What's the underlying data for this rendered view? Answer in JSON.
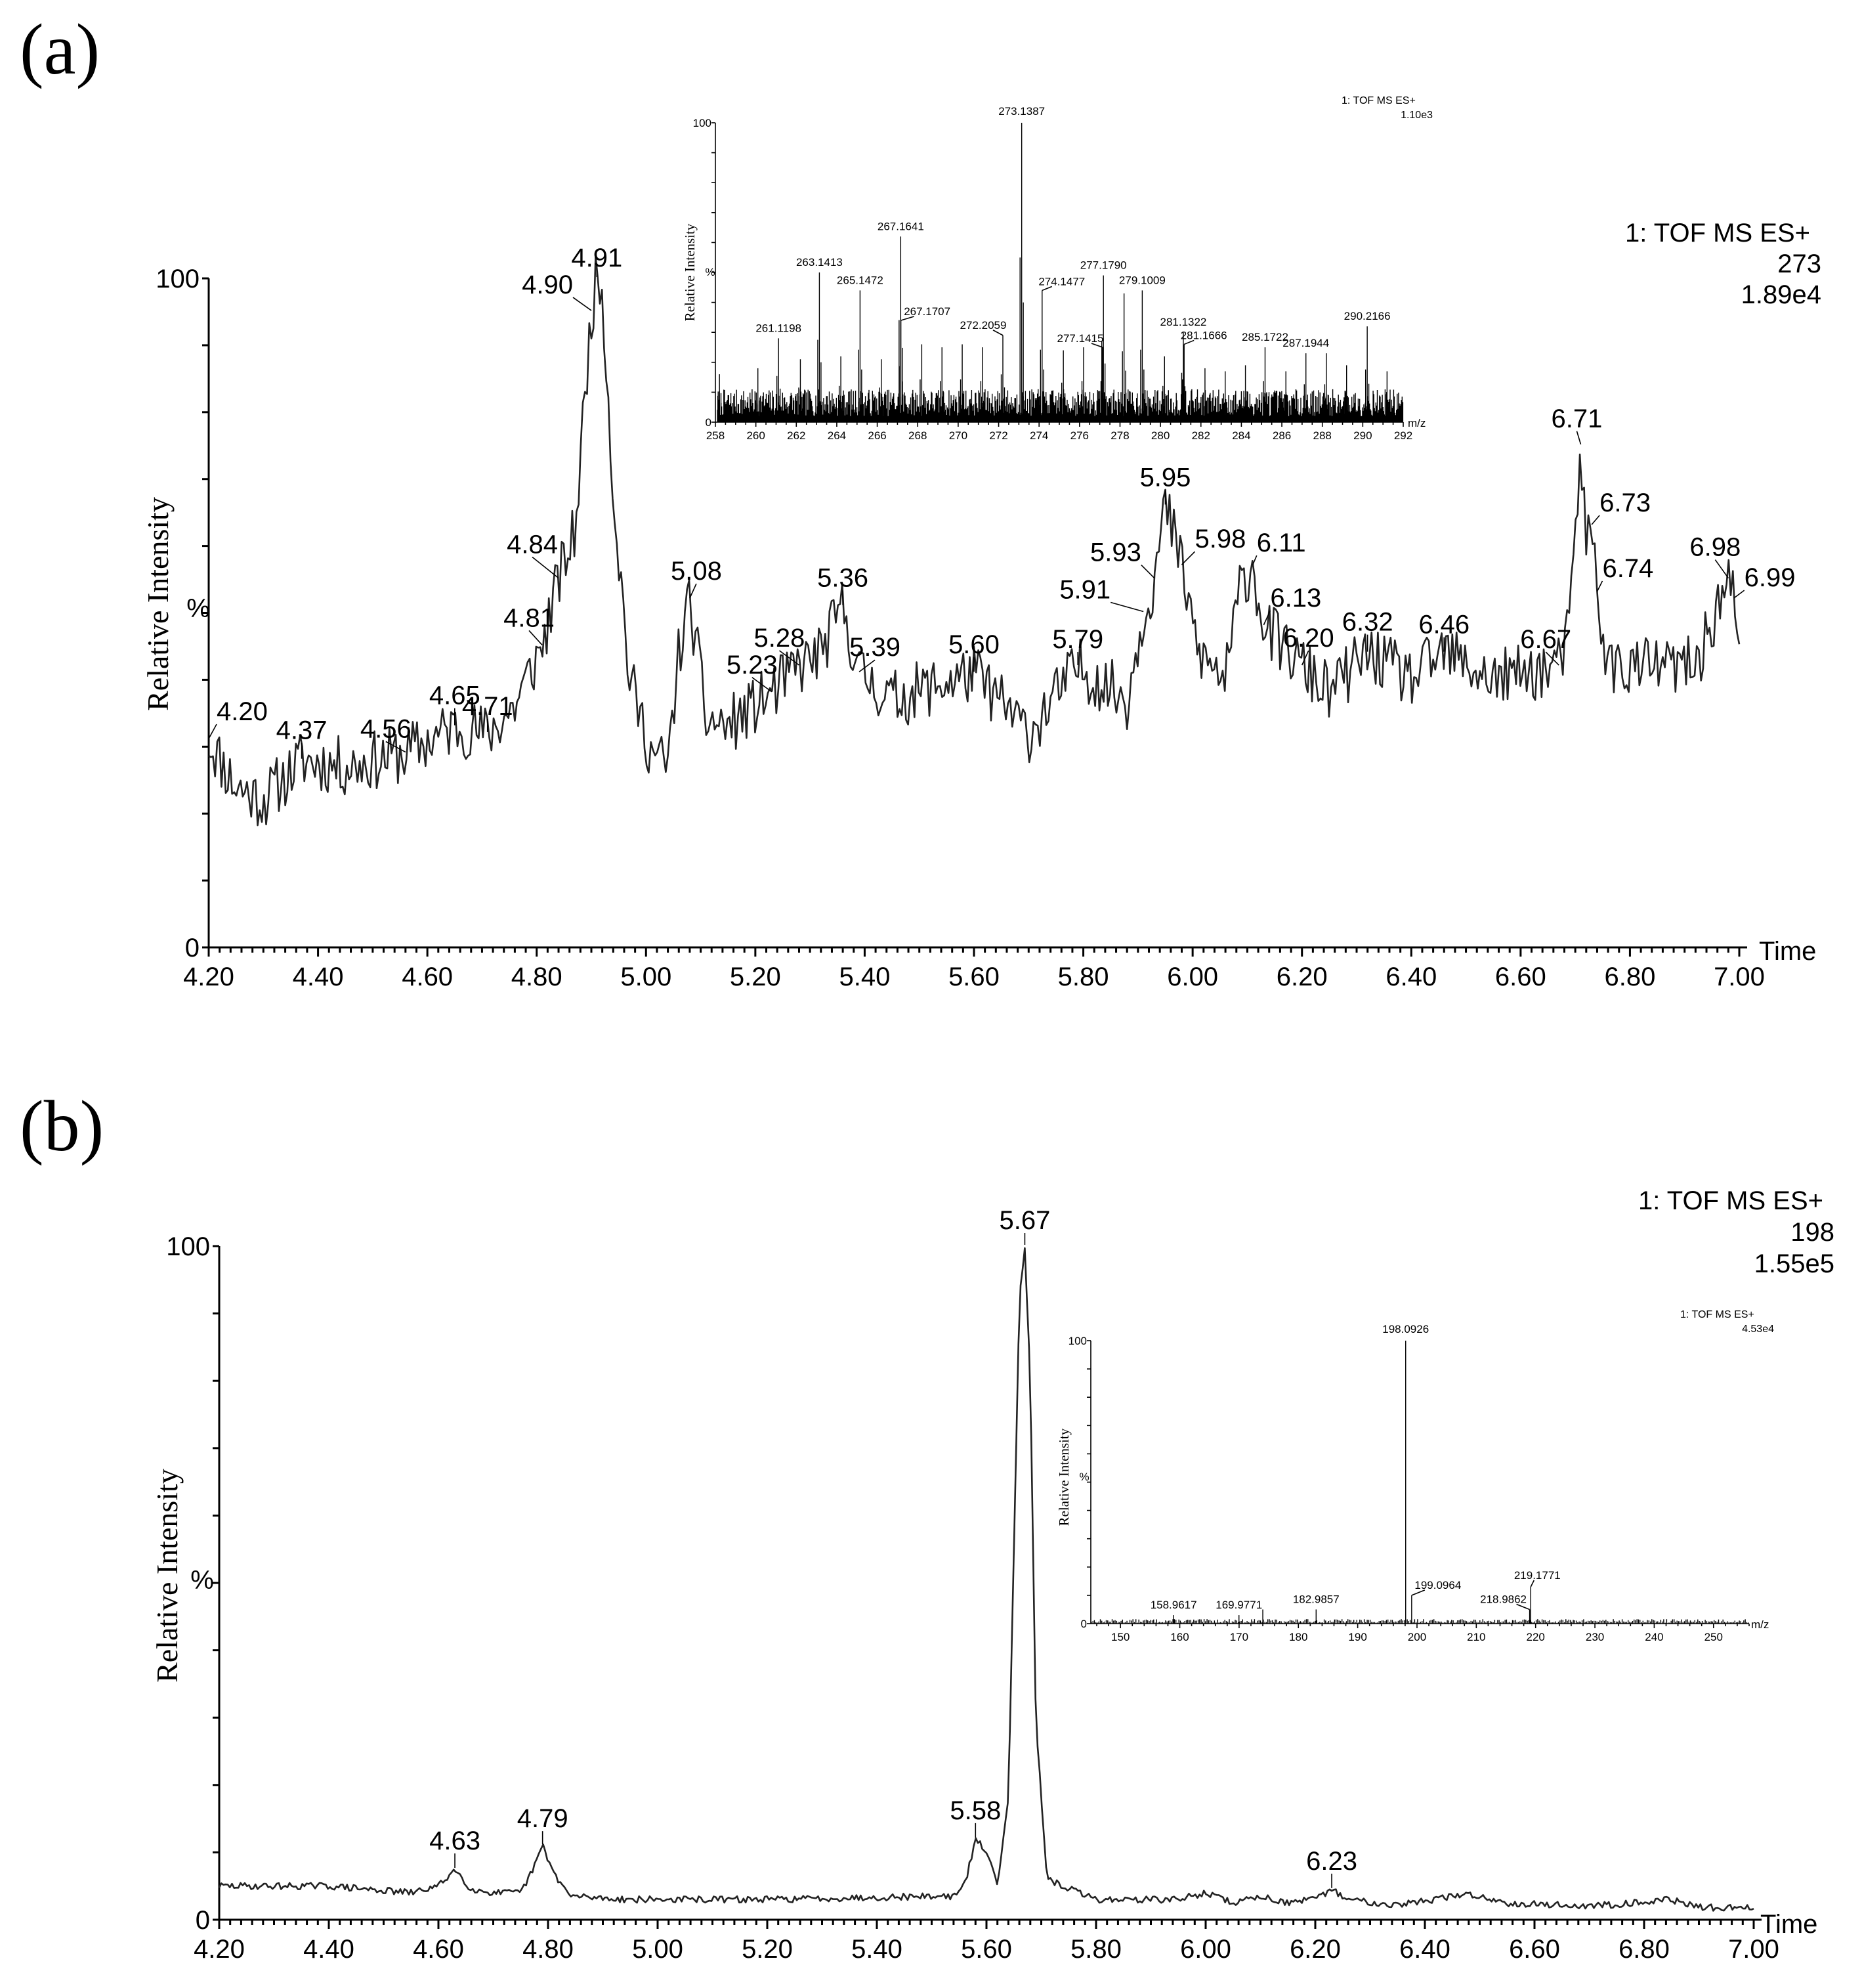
{
  "panel_labels": [
    "(a)",
    "(b)"
  ],
  "chart_data": [
    {
      "id": "chromatogram-a",
      "type": "line",
      "panel": "(a)",
      "ylabel": "Relative Intensity",
      "yunit": "%",
      "xlabel": "Time",
      "xlim": [
        4.2,
        7.0
      ],
      "ylim": [
        0,
        100
      ],
      "xticks": [
        "4.20",
        "4.40",
        "4.60",
        "4.80",
        "5.00",
        "5.20",
        "5.40",
        "5.60",
        "5.80",
        "6.00",
        "6.20",
        "6.40",
        "6.60",
        "6.80",
        "7.00"
      ],
      "yticks": [
        "0",
        "100"
      ],
      "header": [
        "1: TOF MS ES+",
        "273",
        "1.89e4"
      ],
      "anchors": [
        [
          4.2,
          31
        ],
        [
          4.25,
          24
        ],
        [
          4.3,
          22
        ],
        [
          4.37,
          28
        ],
        [
          4.45,
          27
        ],
        [
          4.56,
          29
        ],
        [
          4.65,
          33
        ],
        [
          4.71,
          32
        ],
        [
          4.76,
          36
        ],
        [
          4.81,
          45
        ],
        [
          4.84,
          55
        ],
        [
          4.87,
          62
        ],
        [
          4.9,
          95
        ],
        [
          4.91,
          100
        ],
        [
          4.92,
          99
        ],
        [
          4.94,
          68
        ],
        [
          4.97,
          40
        ],
        [
          5.01,
          29
        ],
        [
          5.04,
          27
        ],
        [
          5.06,
          44
        ],
        [
          5.08,
          52
        ],
        [
          5.11,
          34
        ],
        [
          5.15,
          33
        ],
        [
          5.23,
          38
        ],
        [
          5.28,
          42
        ],
        [
          5.32,
          44
        ],
        [
          5.36,
          51
        ],
        [
          5.39,
          41
        ],
        [
          5.45,
          37
        ],
        [
          5.6,
          41
        ],
        [
          5.7,
          32
        ],
        [
          5.79,
          42
        ],
        [
          5.88,
          37
        ],
        [
          5.91,
          50
        ],
        [
          5.93,
          55
        ],
        [
          5.95,
          66
        ],
        [
          5.98,
          57
        ],
        [
          6.01,
          44
        ],
        [
          6.06,
          40
        ],
        [
          6.09,
          55
        ],
        [
          6.11,
          57
        ],
        [
          6.13,
          48
        ],
        [
          6.2,
          42
        ],
        [
          6.25,
          38
        ],
        [
          6.32,
          44
        ],
        [
          6.4,
          40
        ],
        [
          6.46,
          44
        ],
        [
          6.55,
          40
        ],
        [
          6.67,
          42
        ],
        [
          6.69,
          48
        ],
        [
          6.71,
          75
        ],
        [
          6.72,
          60
        ],
        [
          6.73,
          63
        ],
        [
          6.74,
          53
        ],
        [
          6.76,
          42
        ],
        [
          6.85,
          42
        ],
        [
          6.92,
          42
        ],
        [
          6.98,
          55
        ],
        [
          6.99,
          52
        ],
        [
          7.0,
          42
        ]
      ],
      "noise": 4.5,
      "peak_labels": [
        {
          "t": 4.2,
          "text": "4.20"
        },
        {
          "t": 4.37,
          "text": "4.37"
        },
        {
          "t": 4.56,
          "text": "4.56"
        },
        {
          "t": 4.65,
          "text": "4.65"
        },
        {
          "t": 4.71,
          "text": "4.71"
        },
        {
          "t": 4.81,
          "text": "4.81"
        },
        {
          "t": 4.84,
          "text": "4.84"
        },
        {
          "t": 4.9,
          "text": "4.90"
        },
        {
          "t": 4.91,
          "text": "4.91"
        },
        {
          "t": 5.08,
          "text": "5.08"
        },
        {
          "t": 5.23,
          "text": "5.23"
        },
        {
          "t": 5.28,
          "text": "5.28"
        },
        {
          "t": 5.36,
          "text": "5.36"
        },
        {
          "t": 5.39,
          "text": "5.39"
        },
        {
          "t": 5.6,
          "text": "5.60"
        },
        {
          "t": 5.79,
          "text": "5.79"
        },
        {
          "t": 5.91,
          "text": "5.91"
        },
        {
          "t": 5.93,
          "text": "5.93"
        },
        {
          "t": 5.95,
          "text": "5.95"
        },
        {
          "t": 5.98,
          "text": "5.98"
        },
        {
          "t": 6.11,
          "text": "6.11"
        },
        {
          "t": 6.13,
          "text": "6.13"
        },
        {
          "t": 6.2,
          "text": "6.20"
        },
        {
          "t": 6.32,
          "text": "6.32"
        },
        {
          "t": 6.46,
          "text": "6.46"
        },
        {
          "t": 6.67,
          "text": "6.67"
        },
        {
          "t": 6.71,
          "text": "6.71"
        },
        {
          "t": 6.73,
          "text": "6.73"
        },
        {
          "t": 6.74,
          "text": "6.74"
        },
        {
          "t": 6.98,
          "text": "6.98"
        },
        {
          "t": 6.99,
          "text": "6.99"
        }
      ],
      "inset": {
        "id": "spectrum-a",
        "type": "bar",
        "xlabel": "m/z",
        "ylabel": "Relative Intensity",
        "yunit": "%",
        "xlim": [
          258,
          292
        ],
        "ylim": [
          0,
          100
        ],
        "xticks": [
          "258",
          "260",
          "262",
          "264",
          "266",
          "268",
          "270",
          "272",
          "274",
          "276",
          "278",
          "280",
          "282",
          "284",
          "286",
          "288",
          "290",
          "292"
        ],
        "yticks": [
          "0",
          "100"
        ],
        "header": [
          "1: TOF MS ES+",
          "1.10e3"
        ],
        "peaks": [
          [
            258.2,
            16
          ],
          [
            260.1,
            18
          ],
          [
            261.12,
            28
          ],
          [
            262.2,
            21
          ],
          [
            263.14,
            50
          ],
          [
            264.2,
            22
          ],
          [
            265.15,
            44
          ],
          [
            266.2,
            21
          ],
          [
            267.16,
            62
          ],
          [
            267.17,
            34
          ],
          [
            268.2,
            26
          ],
          [
            269.2,
            25
          ],
          [
            270.2,
            26
          ],
          [
            271.2,
            25
          ],
          [
            272.21,
            29
          ],
          [
            273.14,
            100
          ],
          [
            274.15,
            44
          ],
          [
            275.2,
            24
          ],
          [
            276.2,
            25
          ],
          [
            277.14,
            25
          ],
          [
            277.18,
            49
          ],
          [
            278.2,
            43
          ],
          [
            279.1,
            44
          ],
          [
            280.2,
            22
          ],
          [
            281.13,
            30
          ],
          [
            281.17,
            26
          ],
          [
            282.2,
            18
          ],
          [
            283.2,
            17
          ],
          [
            284.2,
            19
          ],
          [
            285.17,
            25
          ],
          [
            286.2,
            17
          ],
          [
            287.19,
            23
          ],
          [
            288.2,
            23
          ],
          [
            289.2,
            19
          ],
          [
            290.22,
            32
          ],
          [
            291.2,
            17
          ]
        ],
        "labels": [
          {
            "mz": 261.12,
            "text": "261.1198"
          },
          {
            "mz": 263.14,
            "text": "263.1413"
          },
          {
            "mz": 265.15,
            "text": "265.1472"
          },
          {
            "mz": 267.16,
            "text": "267.1641"
          },
          {
            "mz": 267.17,
            "text": "267.1707"
          },
          {
            "mz": 272.21,
            "text": "272.2059"
          },
          {
            "mz": 273.14,
            "text": "273.1387"
          },
          {
            "mz": 274.15,
            "text": "274.1477"
          },
          {
            "mz": 277.14,
            "text": "277.1415"
          },
          {
            "mz": 277.18,
            "text": "277.1790"
          },
          {
            "mz": 279.1,
            "text": "279.1009"
          },
          {
            "mz": 281.13,
            "text": "281.1322"
          },
          {
            "mz": 281.17,
            "text": "281.1666"
          },
          {
            "mz": 285.17,
            "text": "285.1722"
          },
          {
            "mz": 287.19,
            "text": "287.1944"
          },
          {
            "mz": 290.22,
            "text": "290.2166"
          }
        ]
      }
    },
    {
      "id": "chromatogram-b",
      "type": "line",
      "panel": "(b)",
      "ylabel": "Relative Intensity",
      "yunit": "%",
      "xlabel": "Time",
      "xlim": [
        4.2,
        7.0
      ],
      "ylim": [
        0,
        100
      ],
      "xticks": [
        "4.20",
        "4.40",
        "4.60",
        "4.80",
        "5.00",
        "5.20",
        "5.40",
        "5.60",
        "5.80",
        "6.00",
        "6.20",
        "6.40",
        "6.60",
        "6.80",
        "7.00"
      ],
      "yticks": [
        "0",
        "100"
      ],
      "header": [
        "1: TOF MS ES+",
        "198",
        "1.55e5"
      ],
      "anchors": [
        [
          4.2,
          5
        ],
        [
          4.4,
          5
        ],
        [
          4.55,
          4
        ],
        [
          4.6,
          5
        ],
        [
          4.63,
          7.5
        ],
        [
          4.66,
          4.5
        ],
        [
          4.7,
          4
        ],
        [
          4.75,
          4
        ],
        [
          4.77,
          7
        ],
        [
          4.79,
          11
        ],
        [
          4.81,
          7
        ],
        [
          4.84,
          3.5
        ],
        [
          4.95,
          3
        ],
        [
          5.2,
          3
        ],
        [
          5.5,
          3.5
        ],
        [
          5.54,
          3.5
        ],
        [
          5.56,
          5
        ],
        [
          5.58,
          12
        ],
        [
          5.6,
          10
        ],
        [
          5.62,
          5.5
        ],
        [
          5.64,
          18
        ],
        [
          5.65,
          55
        ],
        [
          5.66,
          92
        ],
        [
          5.67,
          100
        ],
        [
          5.68,
          80
        ],
        [
          5.69,
          30
        ],
        [
          5.71,
          6
        ],
        [
          5.74,
          5
        ],
        [
          5.8,
          3
        ],
        [
          5.95,
          3
        ],
        [
          6.0,
          4
        ],
        [
          6.05,
          2.5
        ],
        [
          6.1,
          3.5
        ],
        [
          6.15,
          2.5
        ],
        [
          6.2,
          3
        ],
        [
          6.23,
          4.5
        ],
        [
          6.26,
          3
        ],
        [
          6.35,
          2.2
        ],
        [
          6.48,
          3.8
        ],
        [
          6.55,
          2.5
        ],
        [
          6.7,
          2
        ],
        [
          6.85,
          3
        ],
        [
          6.9,
          1.8
        ],
        [
          7.0,
          1.8
        ]
      ],
      "noise": 0.5,
      "peak_labels": [
        {
          "t": 4.63,
          "text": "4.63"
        },
        {
          "t": 4.79,
          "text": "4.79"
        },
        {
          "t": 5.58,
          "text": "5.58"
        },
        {
          "t": 5.67,
          "text": "5.67"
        },
        {
          "t": 6.23,
          "text": "6.23"
        }
      ],
      "inset": {
        "id": "spectrum-b",
        "type": "bar",
        "xlabel": "m/z",
        "ylabel": "Relative Intensity",
        "yunit": "%",
        "xlim": [
          145,
          256
        ],
        "ylim": [
          0,
          100
        ],
        "xticks": [
          "150",
          "160",
          "170",
          "180",
          "190",
          "200",
          "210",
          "220",
          "230",
          "240",
          "250"
        ],
        "yticks": [
          "0",
          "100"
        ],
        "header": [
          "1: TOF MS ES+",
          "4.53e4"
        ],
        "peaks": [
          [
            158.96,
            3
          ],
          [
            169.98,
            3
          ],
          [
            174.0,
            5
          ],
          [
            182.99,
            5
          ],
          [
            198.09,
            100
          ],
          [
            199.1,
            10
          ],
          [
            218.99,
            5
          ],
          [
            219.18,
            13
          ]
        ],
        "labels": [
          {
            "mz": 158.96,
            "text": "158.9617"
          },
          {
            "mz": 169.98,
            "text": "169.9771"
          },
          {
            "mz": 182.99,
            "text": "182.9857"
          },
          {
            "mz": 198.09,
            "text": "198.0926"
          },
          {
            "mz": 199.1,
            "text": "199.0964"
          },
          {
            "mz": 218.99,
            "text": "218.9862"
          },
          {
            "mz": 219.18,
            "text": "219.1771"
          }
        ]
      }
    }
  ]
}
